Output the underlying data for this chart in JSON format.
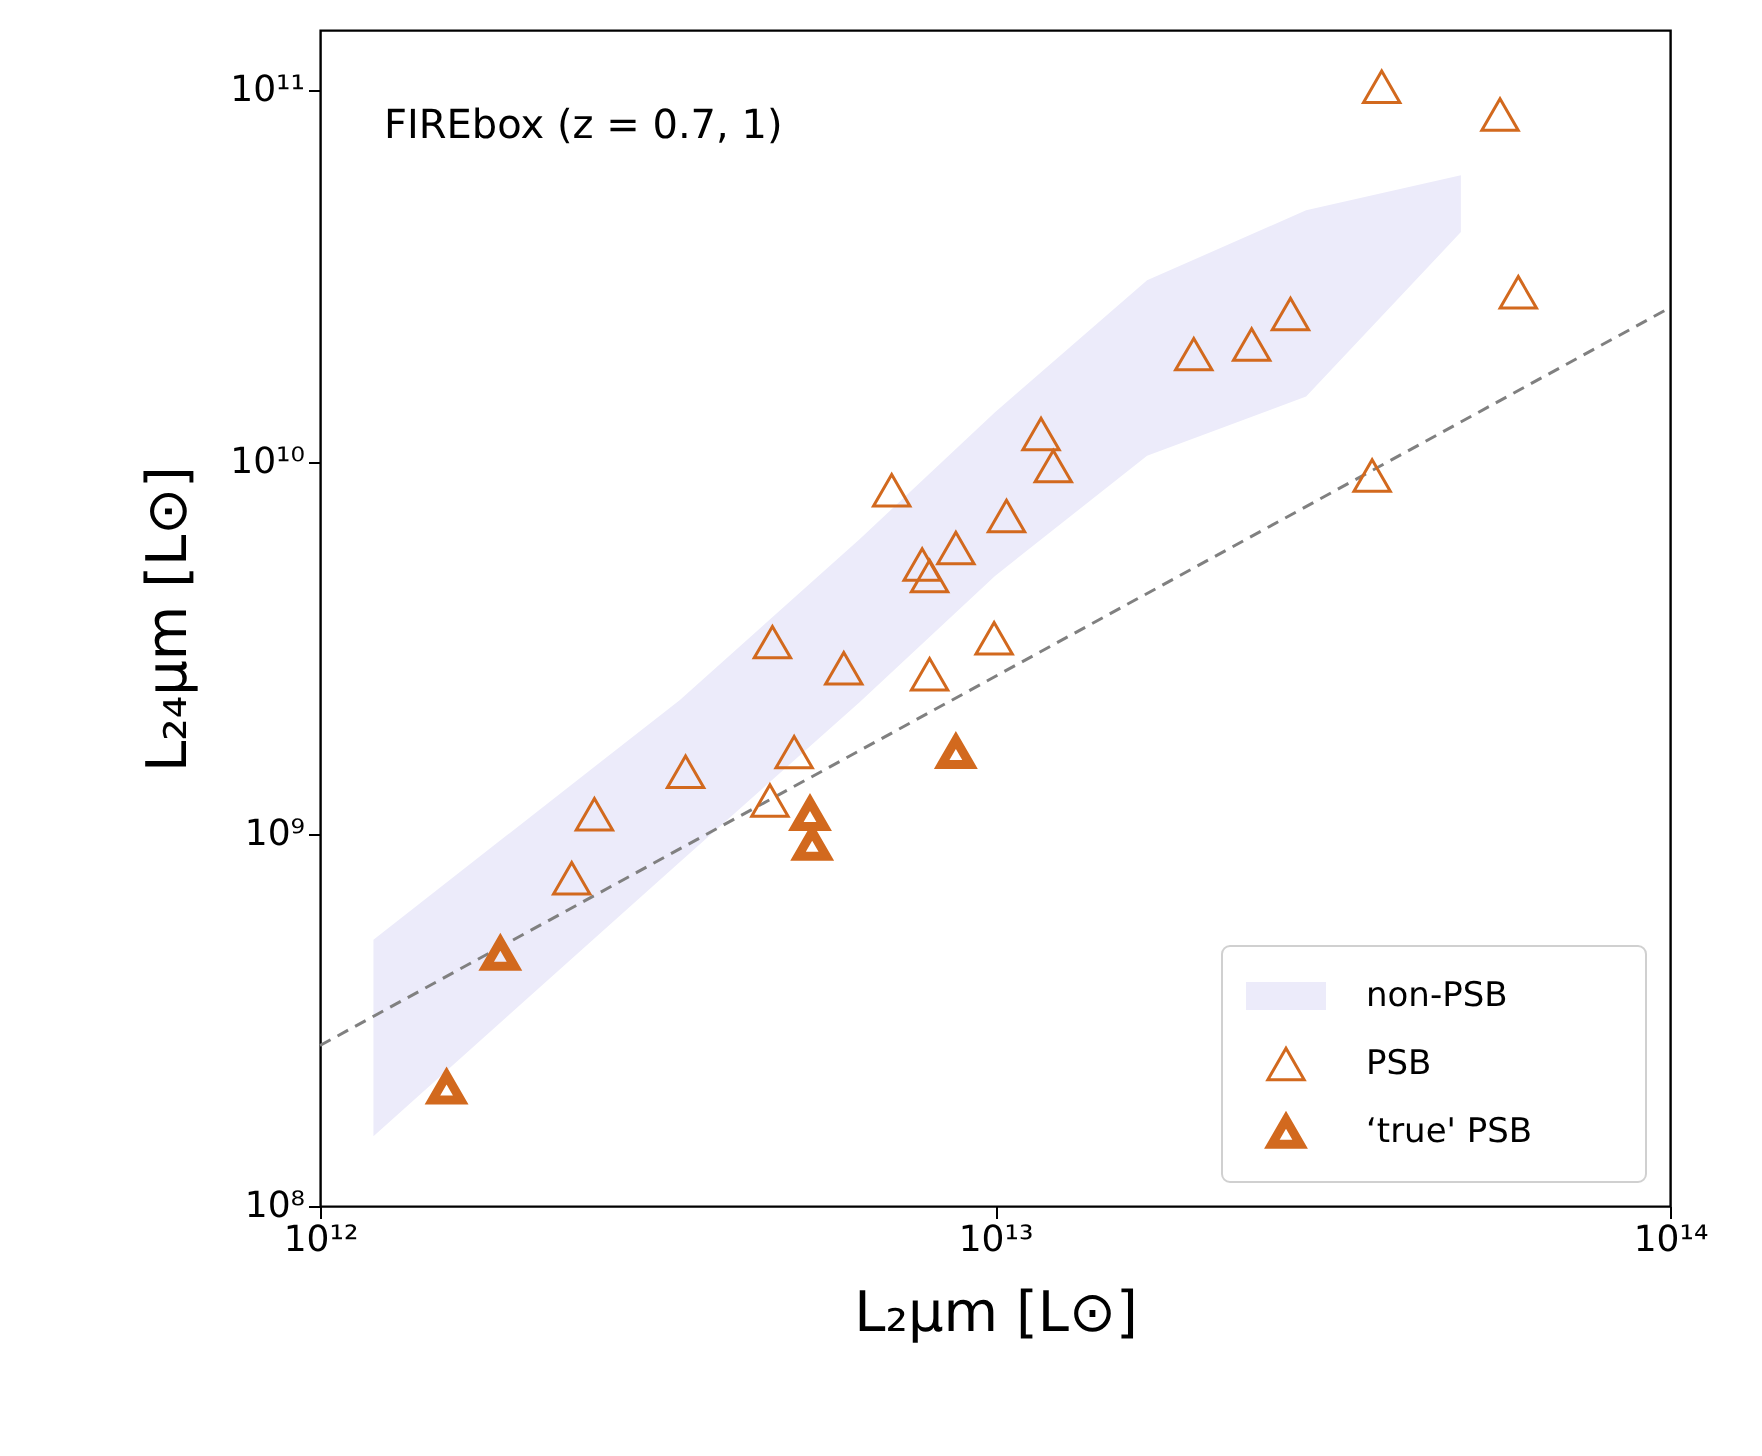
{
  "chart_data": {
    "type": "scatter",
    "xlabel": "L₂μm [L⊙]",
    "ylabel": "L₂₄μm [L⊙]",
    "annotations": [
      "FIREbox (z = 0.7, 1)"
    ],
    "log": "xy",
    "grid": false,
    "legend": "bottom right",
    "xlim": [
      1000000000000.0,
      100000000000000.0
    ],
    "ylim": [
      100000000.0,
      145000000000.0
    ],
    "xticks": [
      {
        "value": 1000000000000.0,
        "label": "10¹²"
      },
      {
        "value": 10000000000000.0,
        "label": "10¹³"
      },
      {
        "value": 100000000000000.0,
        "label": "10¹⁴"
      }
    ],
    "yticks": [
      {
        "value": 100000000.0,
        "label": "10⁸"
      },
      {
        "value": 1000000000.0,
        "label": "10⁹"
      },
      {
        "value": 10000000000.0,
        "label": "10¹⁰"
      },
      {
        "value": 100000000000.0,
        "label": "10¹¹"
      }
    ],
    "series": [
      {
        "name": "non-PSB",
        "type": "area",
        "color": "#ecebfa",
        "x": [
          1200000000000.0,
          3410000000000.0,
          6300000000000.0,
          10000000000000.0,
          16800000000000.0,
          28900000000000.0,
          49000000000000.0
        ],
        "lower": [
          154000000.0,
          840000000.0,
          2260000000.0,
          4940000000.0,
          10400000000.0,
          15000000000.0,
          41500000000.0
        ],
        "upper": [
          520000000.0,
          2290000000.0,
          6200000000.0,
          13600000000.0,
          30800000000.0,
          47500000000.0,
          59000000000.0
        ],
        "values": [
          null,
          null,
          null,
          null,
          null,
          null,
          null
        ]
      },
      {
        "name": "PSB",
        "color": "#d2691e",
        "marker": "triangle",
        "x": [
          37400000000000.0,
          56000000000000.0,
          59600000000000.0,
          36200000000000.0,
          27400000000000.0,
          24000000000000.0,
          19700000000000.0,
          11700000000000.0,
          12200000000000.0,
          7030000000000.0,
          10400000000000.0,
          8750000000000.0,
          7800000000000.0,
          8000000000000.0,
          4680000000000.0,
          5970000000000.0,
          9970000000000.0,
          8000000000000.0,
          3480000000000.0,
          5040000000000.0,
          4640000000000.0,
          2550000000000.0,
          2360000000000.0
        ],
        "values": [
          102000000000.0,
          86000000000.0,
          28600000000.0,
          9200000000.0,
          25000000000.0,
          20700000000.0,
          19500000000.0,
          11900000000.0,
          9750000000.0,
          8400000000.0,
          7160000000.0,
          5870000000.0,
          5300000000.0,
          4940000000.0,
          3280000000.0,
          2790000000.0,
          3360000000.0,
          2690000000.0,
          1470000000.0,
          1660000000.0,
          1230000000.0,
          1130000000.0,
          760000000.0
        ]
      },
      {
        "name": "‘true' PSB",
        "color": "#d2691e",
        "marker": "triangle",
        "x": [
          1540000000000.0,
          1850000000000.0,
          5320000000000.0,
          5360000000000.0,
          8750000000000.0
        ],
        "values": [
          208000000.0,
          476000000.0,
          1130000000.0,
          940000000.0,
          1660000000.0
        ]
      },
      {
        "type": "line",
        "color": "#808080",
        "line_style": "dashed",
        "x": [
          1000000000000.0,
          100000000000000.0
        ],
        "values": [
          270000000.0,
          26000000000.0
        ]
      }
    ]
  }
}
